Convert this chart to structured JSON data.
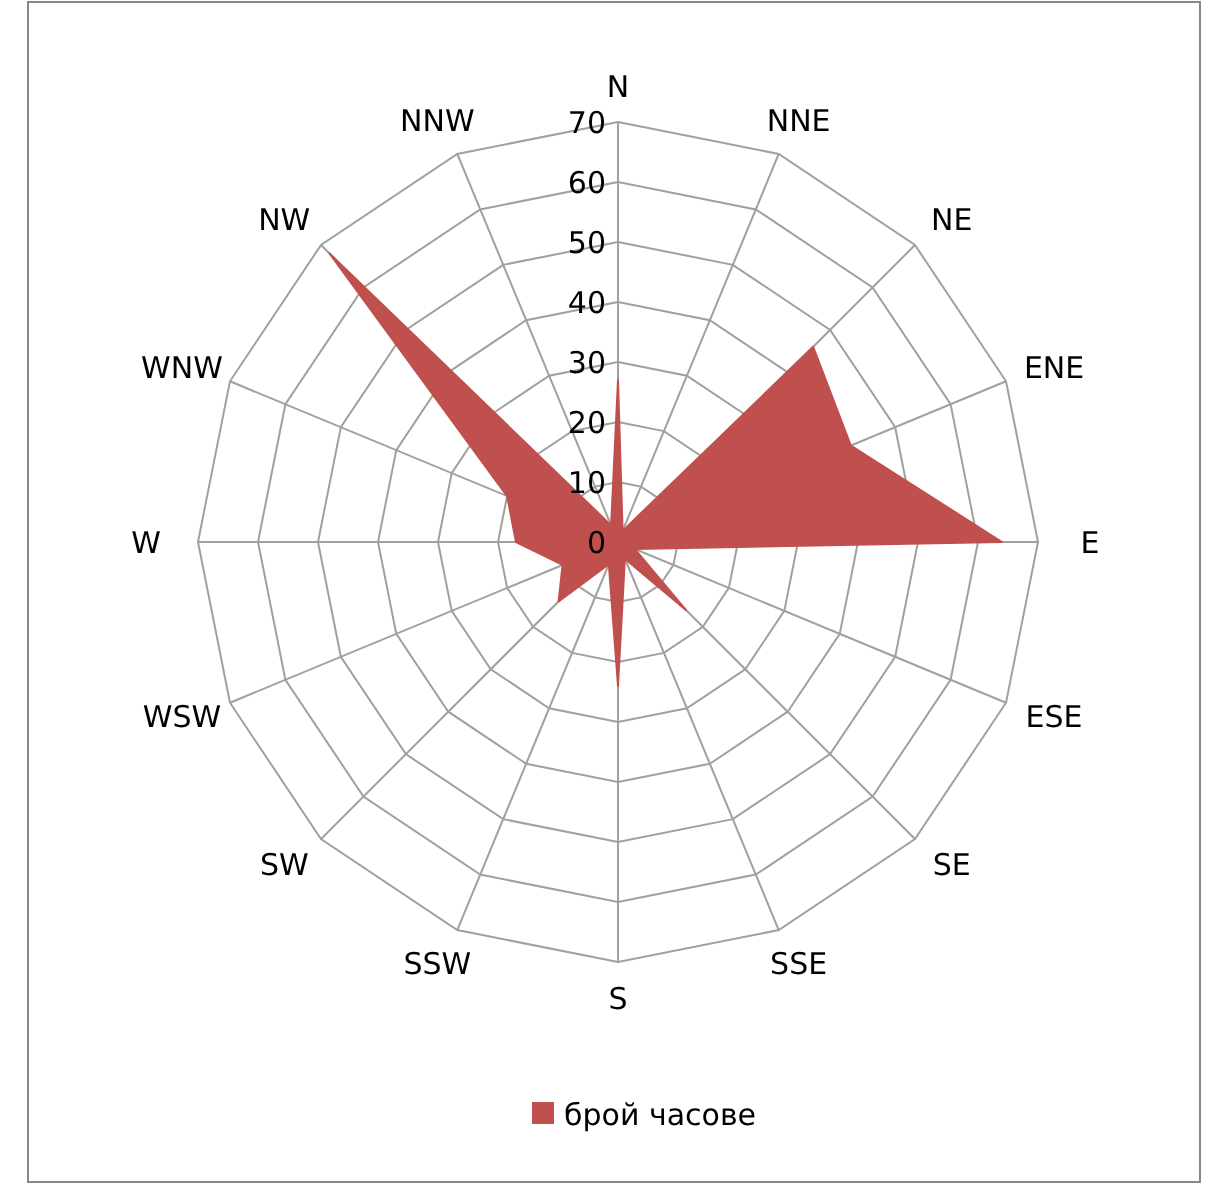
{
  "chart_data": {
    "type": "radar",
    "categories": [
      "N",
      "NNE",
      "NE",
      "ENE",
      "E",
      "ESE",
      "SE",
      "SSE",
      "S",
      "SSW",
      "SW",
      "WSW",
      "W",
      "WNW",
      "NW",
      "NNW"
    ],
    "series": [
      {
        "name": "брой часове",
        "color": "#c0504d",
        "values": [
          27,
          2,
          46,
          42,
          64,
          3,
          16,
          3,
          24,
          4,
          14,
          10,
          17,
          20,
          68,
          3
        ]
      }
    ],
    "ylim": [
      0,
      70
    ],
    "yticks": [
      0,
      10,
      20,
      30,
      40,
      50,
      60,
      70
    ],
    "grid": true,
    "legend": "bottom"
  }
}
